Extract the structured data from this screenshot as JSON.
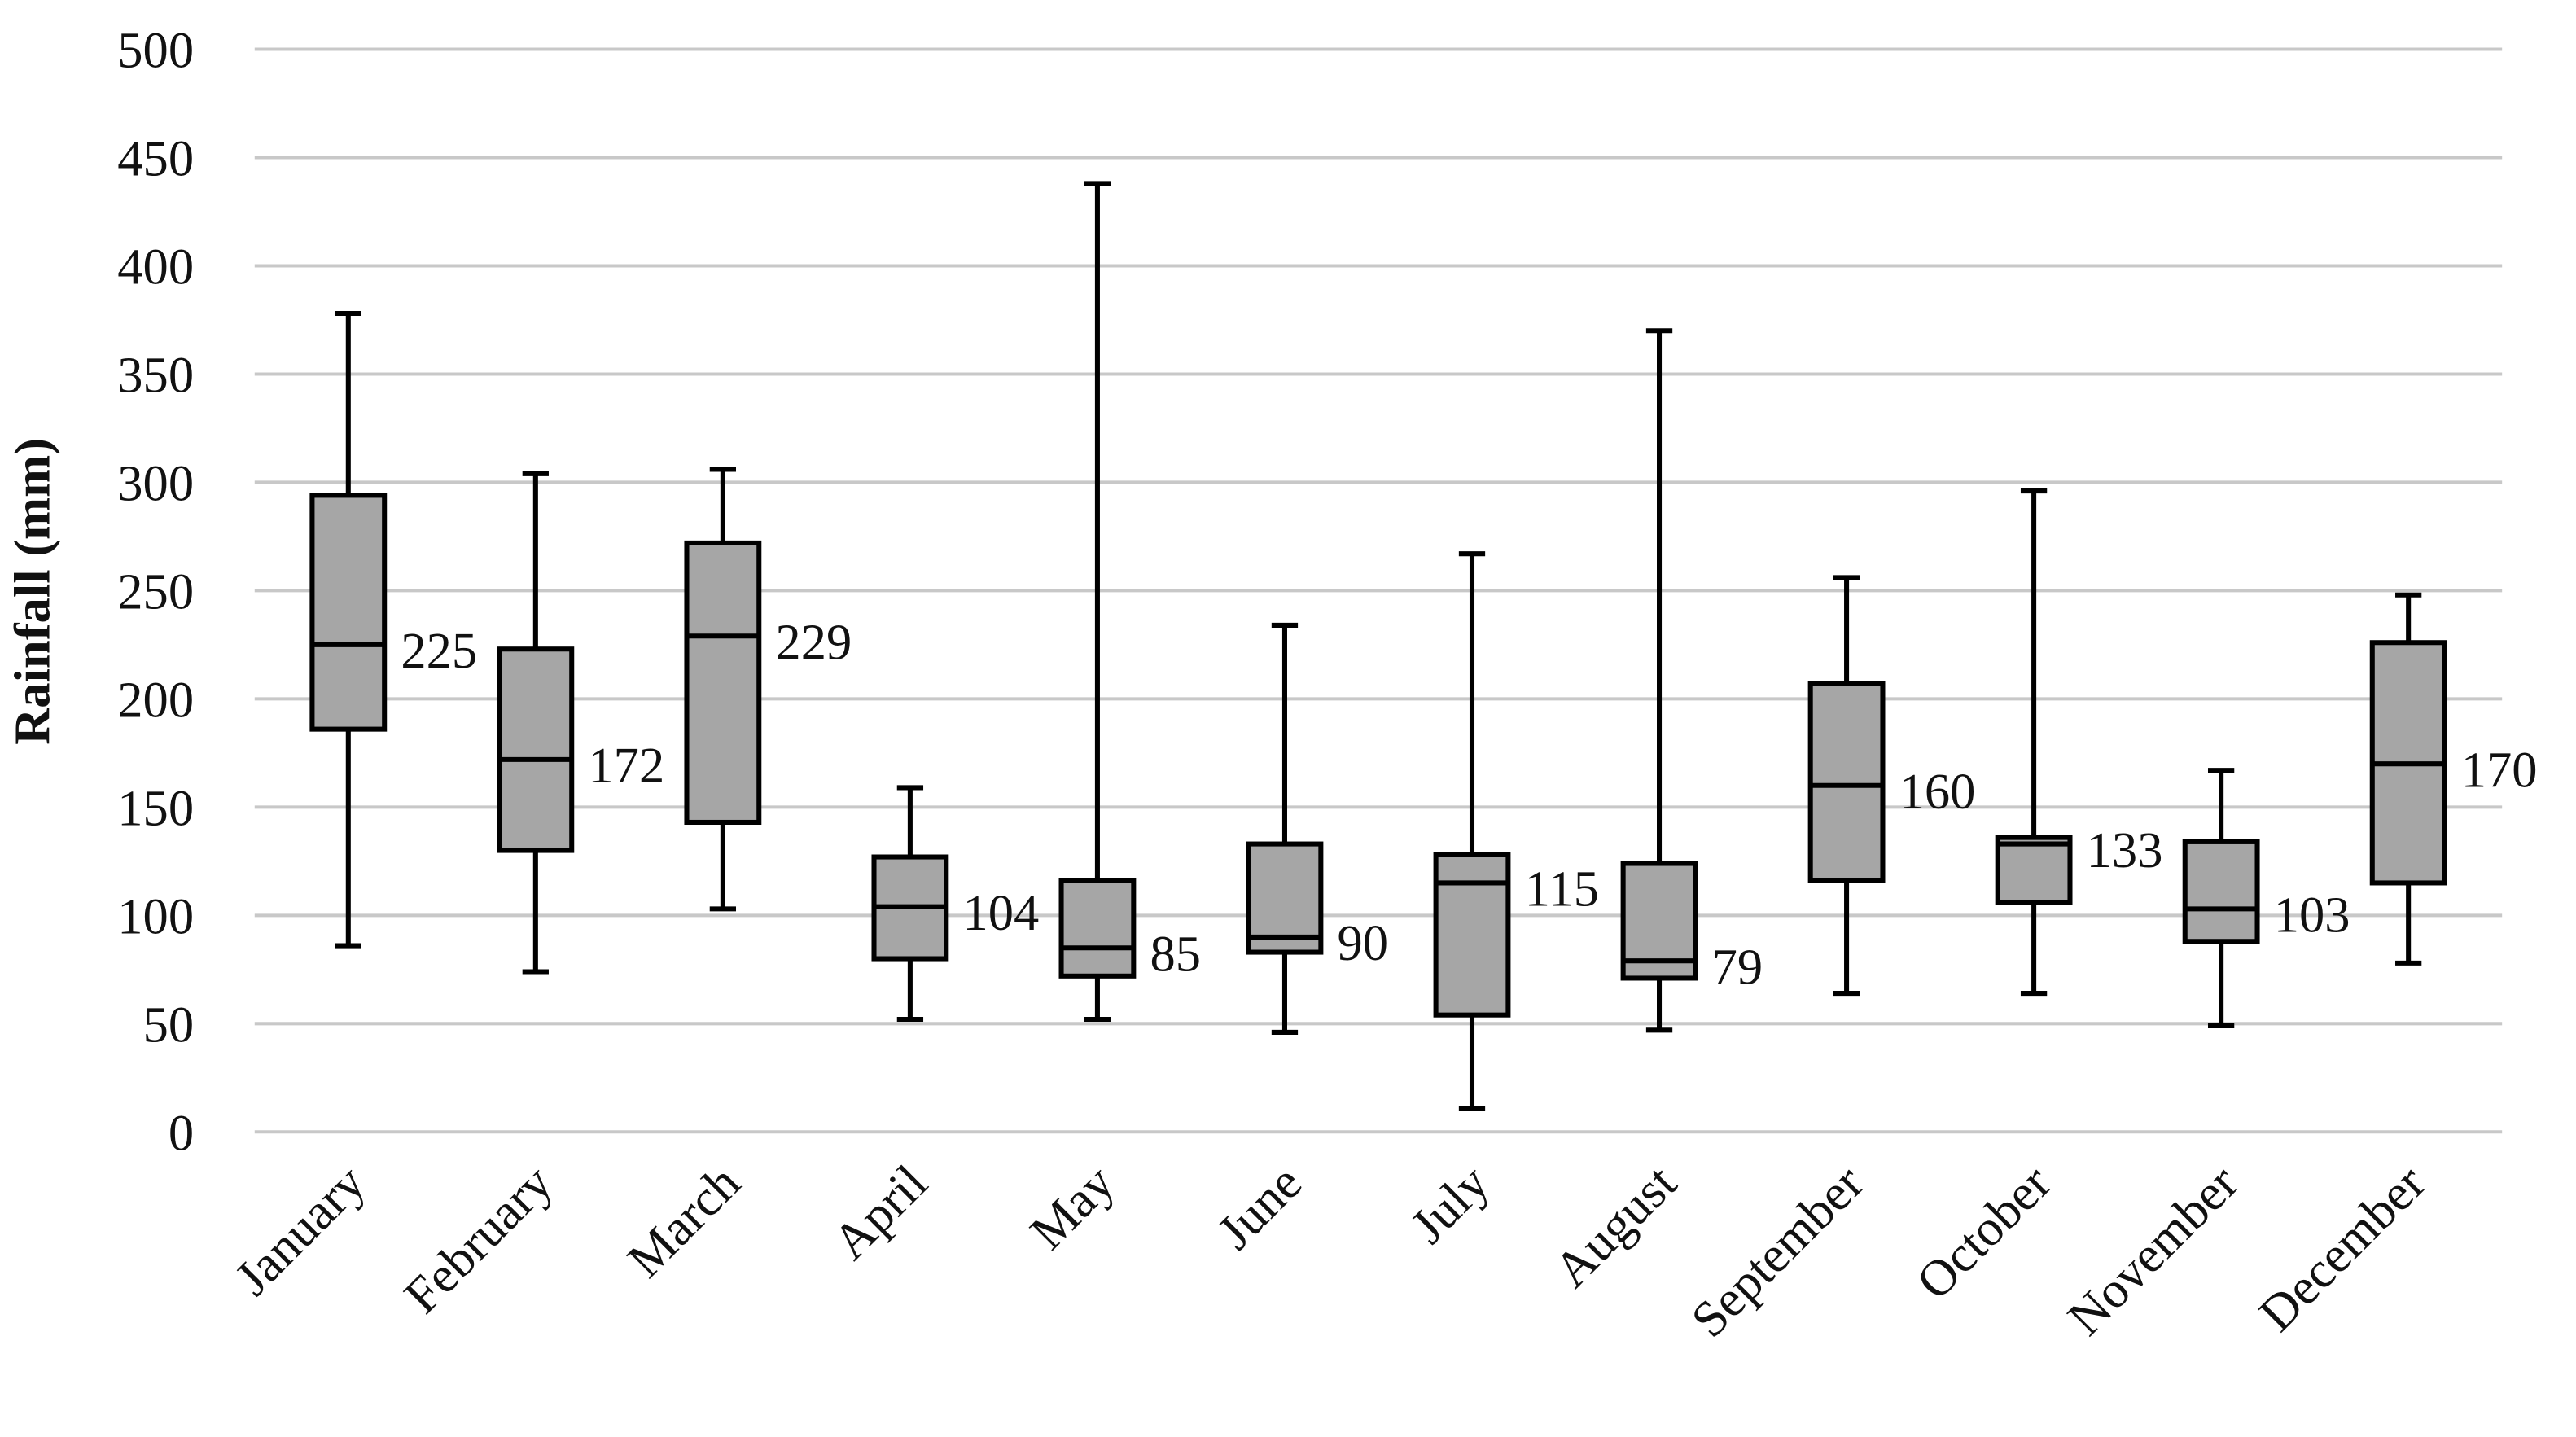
{
  "chart_data": {
    "type": "box",
    "y_label": "Rainfall (mm)",
    "categories": [
      "January",
      "February",
      "March",
      "April",
      "May",
      "June",
      "July",
      "August",
      "September",
      "October",
      "November",
      "December"
    ],
    "min": [
      86,
      74,
      103,
      52,
      52,
      46,
      11,
      47,
      64,
      64,
      49,
      78
    ],
    "q1": [
      186,
      130,
      143,
      80,
      72,
      83,
      54,
      71,
      116,
      106,
      88,
      115
    ],
    "median": [
      225,
      172,
      229,
      104,
      85,
      90,
      115,
      79,
      160,
      133,
      103,
      170
    ],
    "q3": [
      294,
      223,
      272,
      127,
      116,
      133,
      128,
      124,
      207,
      136,
      134,
      226
    ],
    "max": [
      378,
      304,
      306,
      159,
      438,
      234,
      267,
      370,
      256,
      296,
      167,
      248
    ],
    "color": "#a6a6a6",
    "ylim": [
      0,
      500
    ],
    "yticks": [
      0,
      50,
      100,
      150,
      200,
      250,
      300,
      350,
      400,
      450,
      500
    ],
    "grid": true
  }
}
